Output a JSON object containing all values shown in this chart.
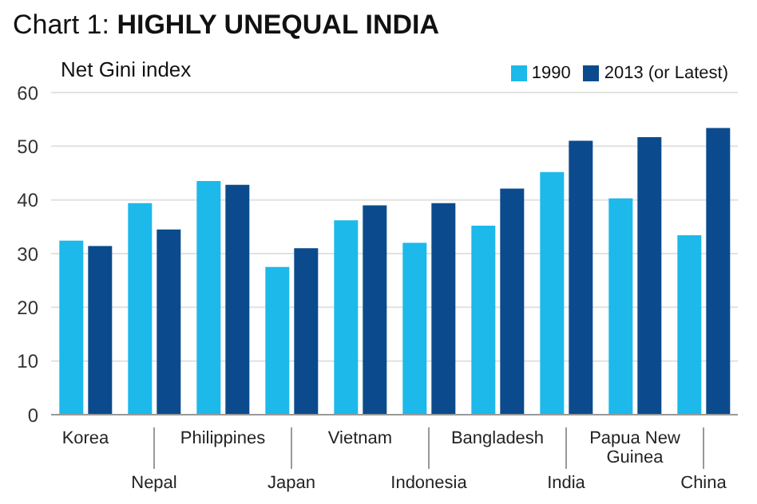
{
  "chart_data": {
    "type": "bar",
    "title": "Chart 1: HIGHLY UNEQUAL INDIA",
    "ylabel": "Net Gini index",
    "categories": [
      "Korea",
      "Nepal",
      "Philippines",
      "Japan",
      "Vietnam",
      "Indonesia",
      "Bangladesh",
      "India",
      "Papua New Guinea",
      "China"
    ],
    "series": [
      {
        "name": "1990",
        "color": "#1cb9ea",
        "values": [
          32.4,
          39.4,
          43.5,
          27.5,
          36.2,
          32,
          35.2,
          45.2,
          40.3,
          33.4
        ]
      },
      {
        "name": "2013 (or Latest)",
        "color": "#0b4b8d",
        "values": [
          31.4,
          34.5,
          42.8,
          31,
          39,
          39.4,
          42.1,
          51,
          51.7,
          53.4
        ]
      }
    ],
    "ylim": [
      0,
      60
    ],
    "yticks": [
      0,
      10,
      20,
      30,
      40,
      50,
      60
    ],
    "grid": "y",
    "legend": "top right"
  }
}
